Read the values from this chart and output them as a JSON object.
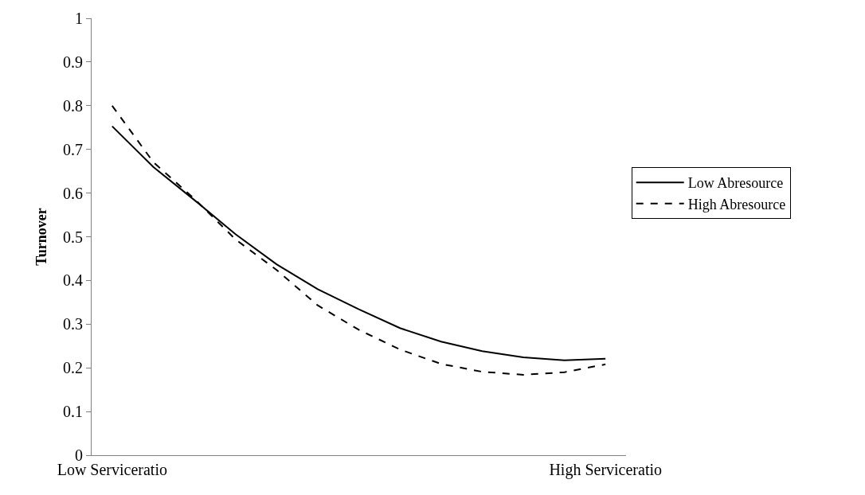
{
  "chart_data": {
    "type": "line",
    "ylabel": "Turnover",
    "categories": [
      "Low Serviceratio",
      null,
      null,
      null,
      null,
      null,
      null,
      null,
      null,
      null,
      null,
      null,
      "High Serviceratio"
    ],
    "series": [
      {
        "name": "Low Abresource",
        "color": "#000000",
        "line_style": "solid",
        "values": [
          0.753,
          0.66,
          0.584,
          0.506,
          0.437,
          0.38,
          0.334,
          0.291,
          0.26,
          0.238,
          0.224,
          0.217,
          0.221
        ]
      },
      {
        "name": "High Abresource",
        "color": "#000000",
        "line_style": "dashed",
        "values": [
          0.8,
          0.671,
          0.587,
          0.494,
          0.424,
          0.343,
          0.287,
          0.242,
          0.209,
          0.191,
          0.184,
          0.19,
          0.208
        ]
      }
    ],
    "ylim": [
      0,
      1
    ],
    "yticks": [
      0,
      0.1,
      0.2,
      0.3,
      0.4,
      0.5,
      0.6,
      0.7,
      0.8,
      0.9,
      1
    ],
    "legend": "right",
    "marker": "none"
  }
}
